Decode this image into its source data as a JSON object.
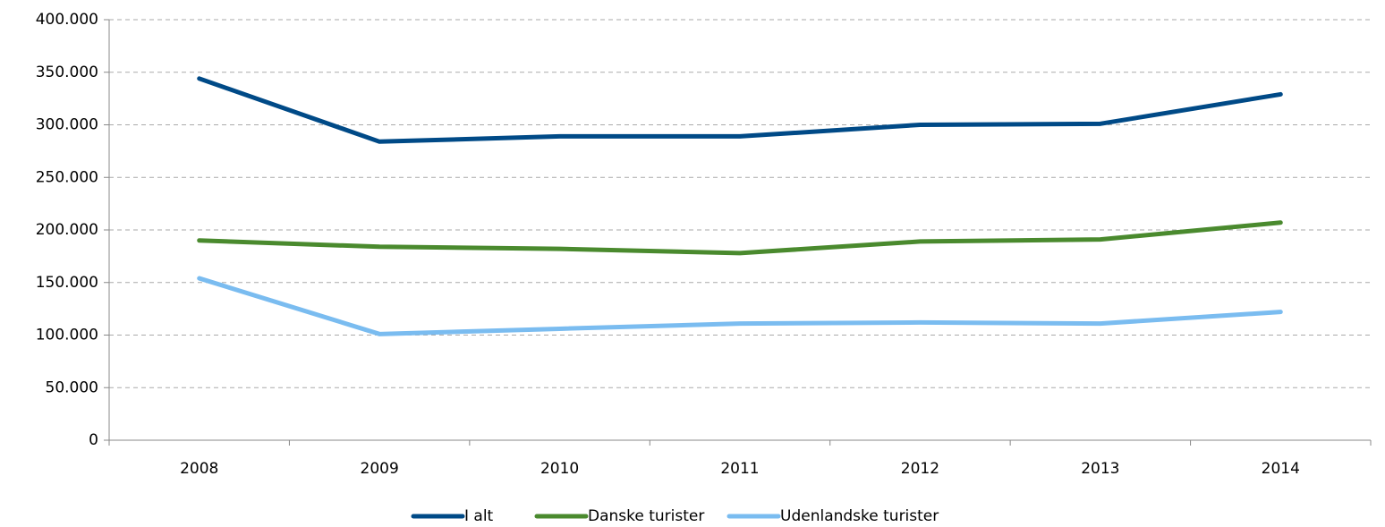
{
  "chart_data": {
    "type": "line",
    "categories": [
      "2008",
      "2009",
      "2010",
      "2011",
      "2012",
      "2013",
      "2014"
    ],
    "series": [
      {
        "name": "I alt",
        "color": "#004a87",
        "values": [
          344000,
          284000,
          289000,
          289000,
          300000,
          301000,
          329000
        ]
      },
      {
        "name": "Danske turister",
        "color": "#4a8a2e",
        "values": [
          190000,
          184000,
          182000,
          178000,
          189000,
          191000,
          207000
        ]
      },
      {
        "name": "Udenlandske turister",
        "color": "#7abcf0",
        "values": [
          154000,
          101000,
          106000,
          111000,
          112000,
          111000,
          122000
        ]
      }
    ],
    "ylim": [
      0,
      400000
    ],
    "yticks": [
      0,
      {
        "value": 50000,
        "label": "50.000"
      },
      {
        "value": 100000,
        "label": "100.000"
      },
      {
        "value": 150000,
        "label": "150.000"
      },
      {
        "value": 200000,
        "label": "200.000"
      },
      {
        "value": 250000,
        "label": "250.000"
      },
      {
        "value": 300000,
        "label": "300.000"
      },
      {
        "value": 350000,
        "label": "350.000"
      },
      {
        "value": 400000,
        "label": "400.000"
      }
    ],
    "grid": true,
    "legend": "bottom"
  }
}
